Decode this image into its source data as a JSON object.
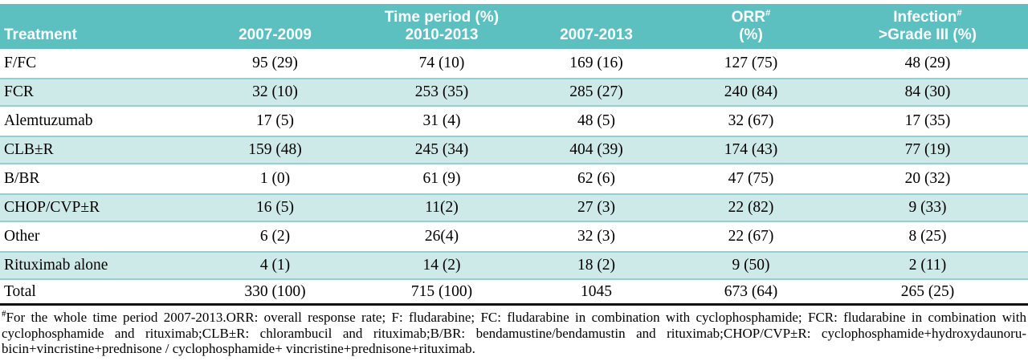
{
  "colors": {
    "header_bg": "#5cbfc0",
    "header_text": "#ffffff",
    "stripe_bg": "#cdeae8",
    "stripe_border": "#8ed3d1",
    "bottom_rule": "#111111"
  },
  "header": {
    "col1": {
      "line2": "Treatment"
    },
    "col2": {
      "line2": "2007-2009"
    },
    "col3": {
      "line1": "Time period (%)",
      "line2": "2010-2013"
    },
    "col4": {
      "line2": "2007-2013"
    },
    "col5": {
      "line1": "ORR",
      "sup": "#",
      "line2": "(%)"
    },
    "col6": {
      "line1": "Infection",
      "sup": "#",
      "line2": ">Grade III (%)"
    }
  },
  "chart_data": {
    "type": "table",
    "title": "",
    "columns": [
      "Treatment",
      "2007-2009",
      "Time period (%) 2010-2013",
      "2007-2013",
      "ORR# (%)",
      "Infection# >Grade III (%)"
    ],
    "rows": [
      [
        "F/FC",
        "95 (29)",
        "74 (10)",
        "169 (16)",
        "127 (75)",
        "48 (29)"
      ],
      [
        "FCR",
        "32 (10)",
        "253 (35)",
        "285 (27)",
        "240 (84)",
        "84 (30)"
      ],
      [
        "Alemtuzumab",
        "17 (5)",
        "31 (4)",
        "48 (5)",
        "32 (67)",
        "17 (35)"
      ],
      [
        "CLB±R",
        "159 (48)",
        "245 (34)",
        "404 (39)",
        "174 (43)",
        "77 (19)"
      ],
      [
        "B/BR",
        "1 (0)",
        "61 (9)",
        "62 (6)",
        "47 (75)",
        "20 (32)"
      ],
      [
        "CHOP/CVP±R",
        "16 (5)",
        "11(2)",
        "27 (3)",
        "22 (82)",
        "9 (33)"
      ],
      [
        "Other",
        "6 (2)",
        "26(4)",
        "32 (3)",
        "22 (67)",
        "8 (25)"
      ],
      [
        "Rituximab alone",
        "4 (1)",
        "14 (2)",
        "18 (2)",
        "9 (50)",
        "2 (11)"
      ],
      [
        "Total",
        "330 (100)",
        "715 (100)",
        "1045",
        "673 (64)",
        "265 (25)"
      ]
    ]
  },
  "footnote": {
    "marker": "#",
    "lines": [
      "For the whole time period 2007-2013.ORR:  overall response rate; F: fludarabine; FC: fludarabine in combination with cyclophosphamide; FCR: fludarabine in combination with",
      "cyclophosphamide and rituximab;CLB±R:  chlorambucil and rituximab;B/BR: bendamustine/bendamustin and rituximab;CHOP/CVP±R: cyclophosphamide+hydroxydaunoru-",
      "bicin+vincristine+prednisone / cyclophosphamide+ vincristine+prednisone+rituximab."
    ]
  }
}
